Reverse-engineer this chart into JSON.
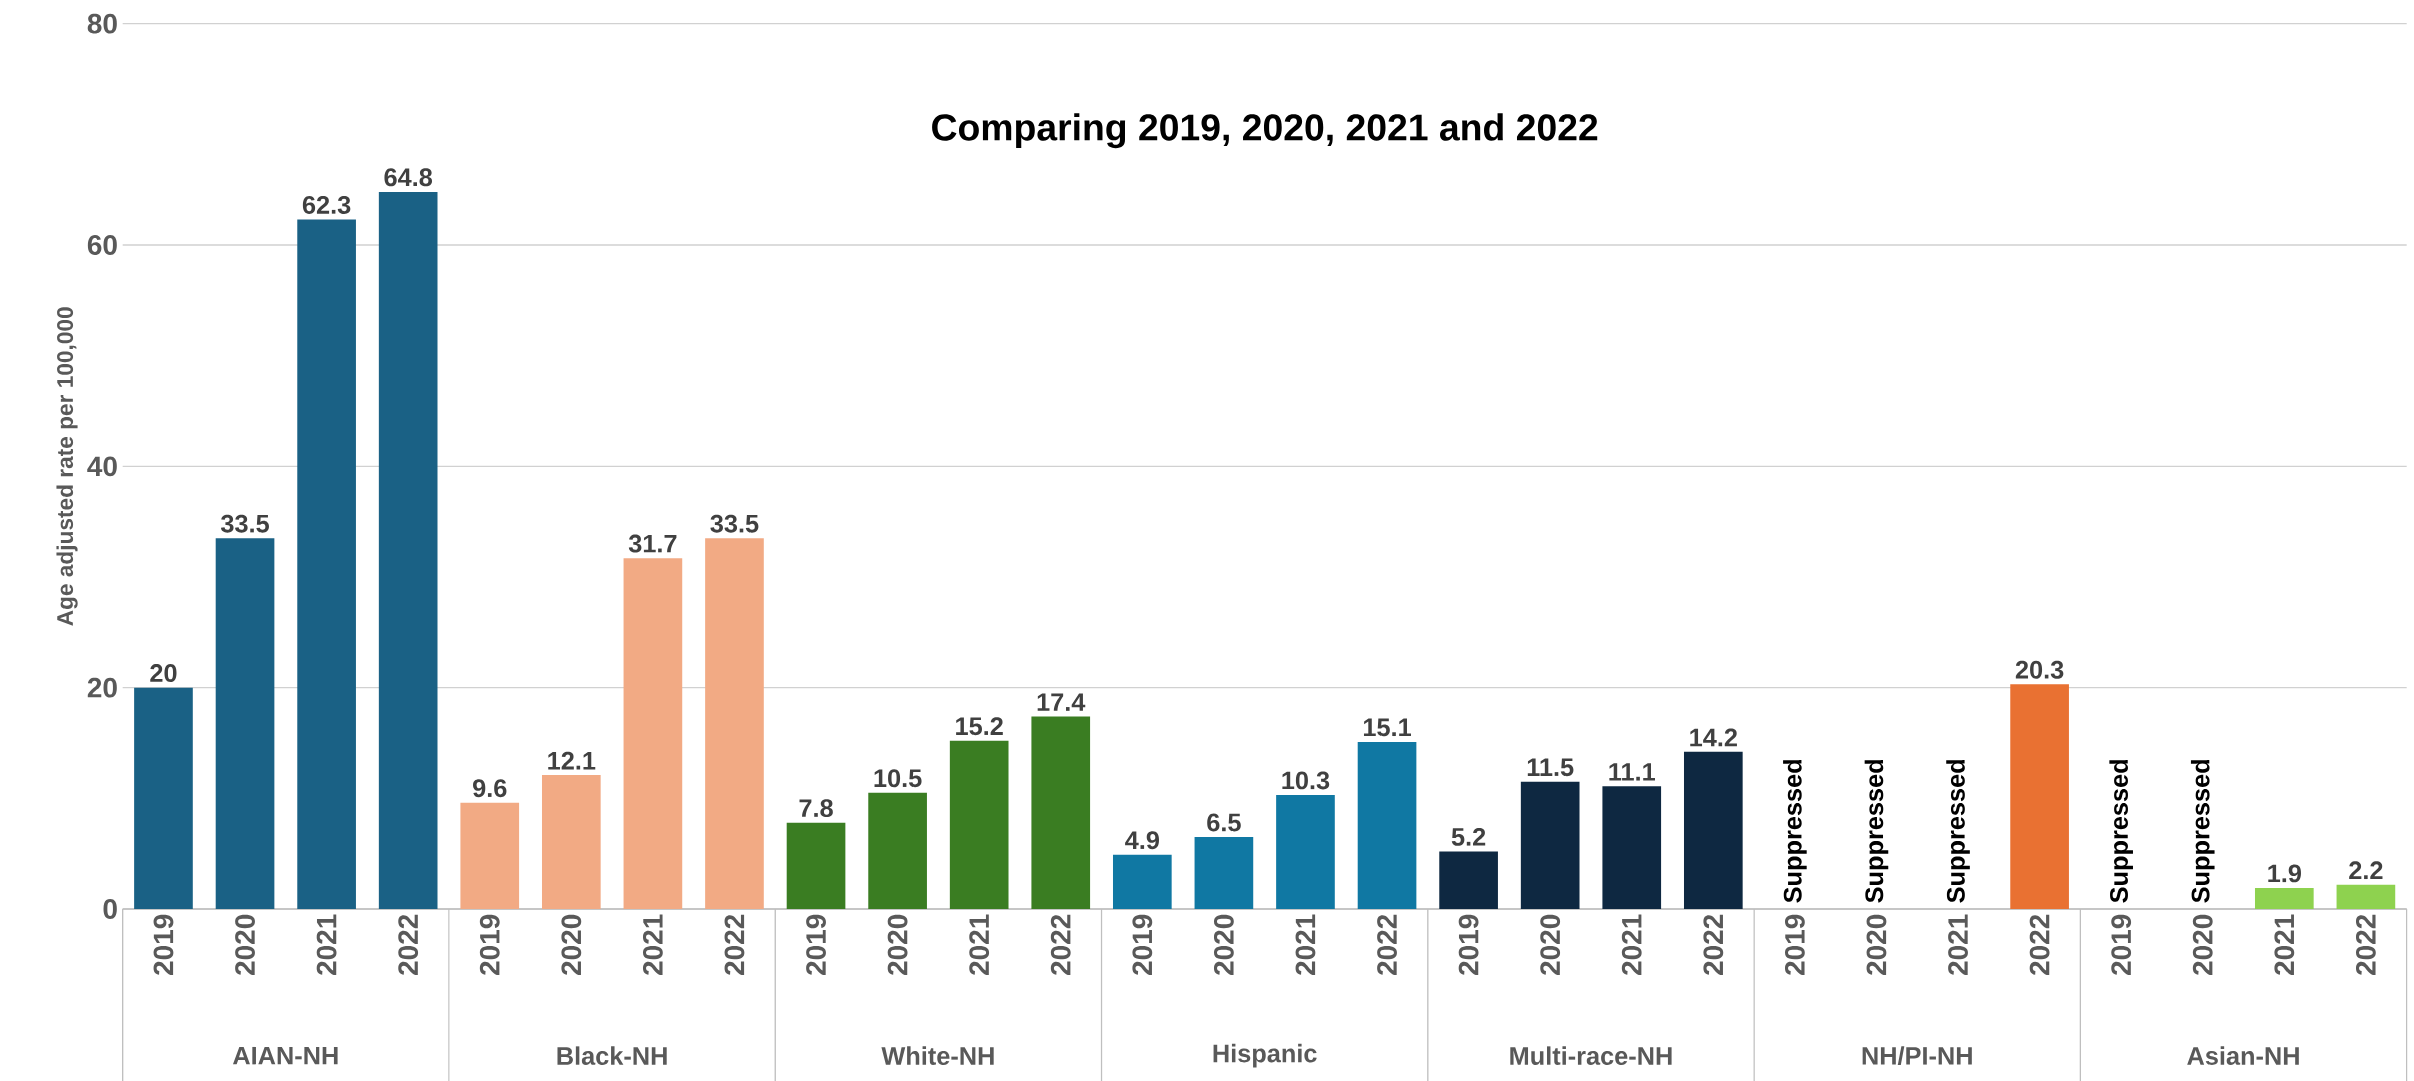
{
  "chart_data": {
    "type": "bar",
    "title": "Comparing 2019, 2020, 2021 and 2022",
    "ylabel": "Age adjusted rate per 100,000",
    "categories": [
      "2019",
      "2020",
      "2021",
      "2022",
      "2019",
      "2020",
      "2021",
      "2022",
      "2019",
      "2020",
      "2021",
      "2022",
      "2019",
      "2020",
      "2021",
      "2022",
      "2019",
      "2020",
      "2021",
      "2022",
      "2019",
      "2020",
      "2021",
      "2022",
      "2019",
      "2020",
      "2021",
      "2022"
    ],
    "values": [
      20,
      33.5,
      62.3,
      64.8,
      9.6,
      12.1,
      31.7,
      33.5,
      7.8,
      10.5,
      15.2,
      17.4,
      4.9,
      6.5,
      10.3,
      15.1,
      5.2,
      11.5,
      11.1,
      14.2,
      null,
      null,
      null,
      20.3,
      null,
      null,
      1.9,
      2.2
    ],
    "value_labels": [
      "20",
      "33.5",
      "62.3",
      "64.8",
      "9.6",
      "12.1",
      "31.7",
      "33.5",
      "7.8",
      "10.5",
      "15.2",
      "17.4",
      "4.9",
      "6.5",
      "10.3",
      "15.1",
      "5.2",
      "11.5",
      "11.1",
      "14.2",
      "Suppressed",
      "Suppressed",
      "Suppressed",
      "20.3",
      "Suppressed",
      "Suppressed",
      "1.9",
      "2.2"
    ],
    "colors": [
      "#1a6185",
      "#1a6185",
      "#1a6185",
      "#1a6185",
      "#f2aa84",
      "#f2aa84",
      "#f2aa84",
      "#f2aa84",
      "#3a7d22",
      "#3a7d22",
      "#3a7d22",
      "#3a7d22",
      "#1078a3",
      "#1078a3",
      "#1078a3",
      "#1078a3",
      "#0e2841",
      "#0e2841",
      "#0e2841",
      "#0e2841",
      "#e97132",
      "#e97132",
      "#e97132",
      "#e97132",
      "#8ed24f",
      "#8ed24f",
      "#8ed24f",
      "#8ed24f"
    ],
    "annotations": [
      "AIAN-NH",
      "Black-NH",
      "White-NH",
      "Hispanic",
      "Multi-race-NH",
      "NH/PI-NH",
      "Asian-NH"
    ],
    "ylim": [
      0,
      80
    ],
    "yticks": [
      0,
      20,
      40,
      60,
      80
    ],
    "grid": "y"
  }
}
